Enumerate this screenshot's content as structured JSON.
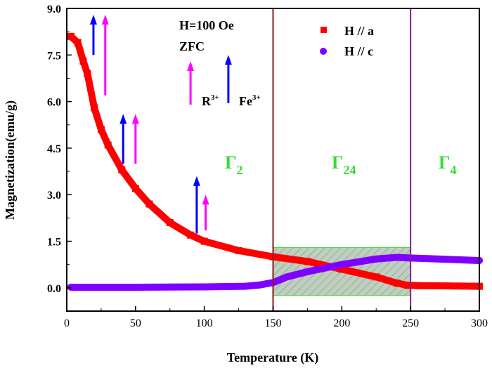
{
  "chart_data": {
    "type": "scatter",
    "xlabel": "Temperature (K)",
    "ylabel": "Magnetization(emu/g)",
    "xlim": [
      0,
      300
    ],
    "ylim": [
      -0.75,
      9.0
    ],
    "xticks": [
      "0",
      "50",
      "100",
      "150",
      "200",
      "250",
      "300"
    ],
    "yticks": [
      "0.0",
      "1.5",
      "3.0",
      "4.5",
      "6.0",
      "7.5",
      "9.0"
    ],
    "grid": false,
    "legend_position": "top-right",
    "series": [
      {
        "name": "H // a",
        "marker": "square",
        "color": "#ff0000",
        "x": [
          3,
          8,
          12,
          15,
          20,
          25,
          30,
          40,
          50,
          60,
          75,
          90,
          100,
          125,
          150,
          175,
          200,
          225,
          240,
          248,
          255,
          300
        ],
        "y": [
          8.1,
          7.9,
          7.3,
          6.9,
          5.8,
          5.1,
          4.6,
          3.8,
          3.2,
          2.7,
          2.1,
          1.7,
          1.5,
          1.2,
          1.0,
          0.85,
          0.6,
          0.35,
          0.15,
          0.08,
          0.07,
          0.05
        ]
      },
      {
        "name": "H // c",
        "marker": "circle",
        "color": "#8000ff",
        "x": [
          3,
          50,
          100,
          130,
          140,
          150,
          160,
          175,
          200,
          225,
          240,
          250,
          275,
          300
        ],
        "y": [
          0.02,
          0.02,
          0.03,
          0.05,
          0.09,
          0.17,
          0.35,
          0.52,
          0.75,
          0.93,
          0.98,
          0.96,
          0.92,
          0.88
        ]
      }
    ],
    "vertical_lines": [
      {
        "x": 150,
        "color": "#8b1a1a"
      },
      {
        "x": 250,
        "color": "#8b1a8b"
      }
    ],
    "shaded_region": {
      "x": [
        150,
        250
      ],
      "y": [
        -0.25,
        1.3
      ],
      "fill": "#c8c8c8",
      "hatch": "#33dd33"
    },
    "annotations": {
      "field": "H=100 Oe",
      "mode": "ZFC",
      "r_label": "R",
      "r_sup": "3+",
      "fe_label": "Fe",
      "fe_sup": "3+",
      "phase1": "Γ",
      "phase1_sub": "2",
      "phase2": "Γ",
      "phase2_sub": "24",
      "phase3": "Γ",
      "phase3_sub": "4"
    },
    "colors": {
      "r_arrow": "#ff00ff",
      "fe_arrow": "#0000ff",
      "phase_text": "#33dd33"
    }
  }
}
